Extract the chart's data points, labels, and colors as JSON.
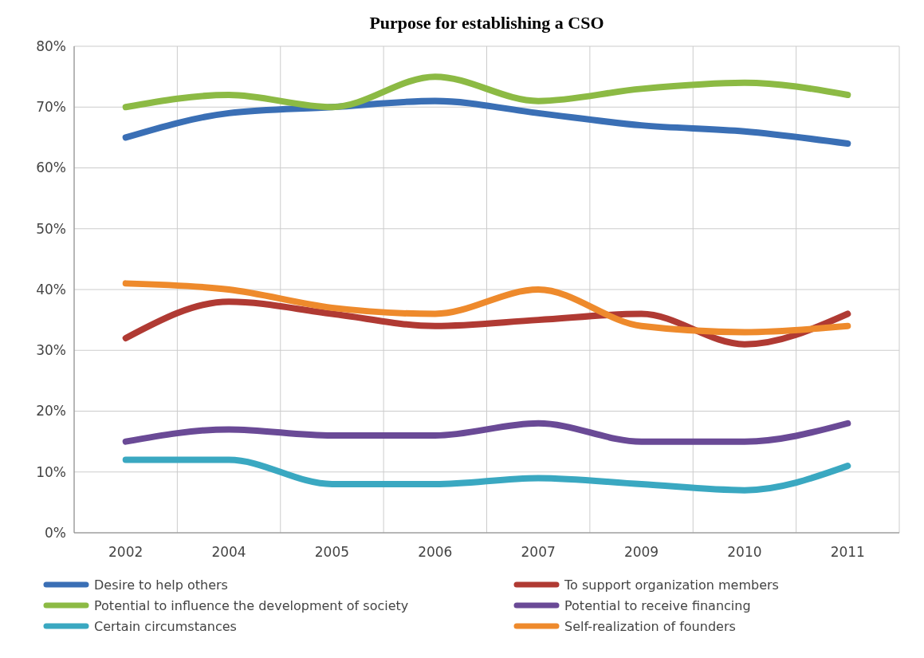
{
  "chart_data": {
    "type": "line",
    "title": "Purpose for establishing a CSO",
    "categories": [
      "2002",
      "2004",
      "2005",
      "2006",
      "2007",
      "2009",
      "2010",
      "2011"
    ],
    "series": [
      {
        "name": "Desire to help others",
        "color": "#3a6fb5",
        "values": [
          65,
          69,
          70,
          71,
          69,
          67,
          66,
          64
        ]
      },
      {
        "name": "To support organization members",
        "color": "#b03a33",
        "values": [
          32,
          38,
          36,
          34,
          35,
          36,
          31,
          36
        ]
      },
      {
        "name": "Potential to influence the development of society",
        "color": "#8cba44",
        "values": [
          70,
          72,
          70,
          75,
          71,
          73,
          74,
          72
        ]
      },
      {
        "name": "Potential to receive financing",
        "color": "#6a4a96",
        "values": [
          15,
          17,
          16,
          16,
          18,
          15,
          15,
          18
        ]
      },
      {
        "name": "Certain circumstances",
        "color": "#3aa8c1",
        "values": [
          12,
          12,
          8,
          8,
          9,
          8,
          7,
          11
        ]
      },
      {
        "name": "Self-realization of founders",
        "color": "#ee8a2c",
        "values": [
          41,
          40,
          37,
          36,
          40,
          34,
          33,
          34
        ]
      }
    ],
    "ylim": [
      0,
      80
    ],
    "yticks": [
      {
        "value": 0,
        "label": "0%"
      },
      {
        "value": 10,
        "label": "10%"
      },
      {
        "value": 20,
        "label": "20%"
      },
      {
        "value": 30,
        "label": "30%"
      },
      {
        "value": 40,
        "label": "40%"
      },
      {
        "value": 50,
        "label": "50%"
      },
      {
        "value": 60,
        "label": "60%"
      },
      {
        "value": 70,
        "label": "70%"
      },
      {
        "value": 80,
        "label": "80%"
      }
    ],
    "grid": true,
    "legend": "bottom"
  }
}
